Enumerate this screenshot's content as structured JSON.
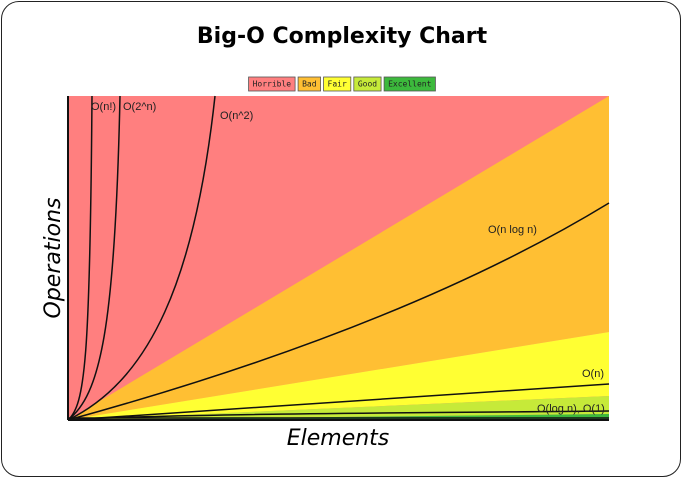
{
  "title": "Big-O Complexity Chart",
  "x_axis_label": "Elements",
  "y_axis_label": "Operations",
  "legend": [
    {
      "label": "Horrible",
      "color": "#ff7f7f"
    },
    {
      "label": "Bad",
      "color": "#ffbf33"
    },
    {
      "label": "Fair",
      "color": "#ffff33"
    },
    {
      "label": "Good",
      "color": "#c6ea39"
    },
    {
      "label": "Excellent",
      "color": "#3cb93c"
    }
  ],
  "curves": [
    "O(n!)",
    "O(2^n)",
    "O(n^2)",
    "O(n log n)",
    "O(n)",
    "O(log n), O(1)"
  ]
}
